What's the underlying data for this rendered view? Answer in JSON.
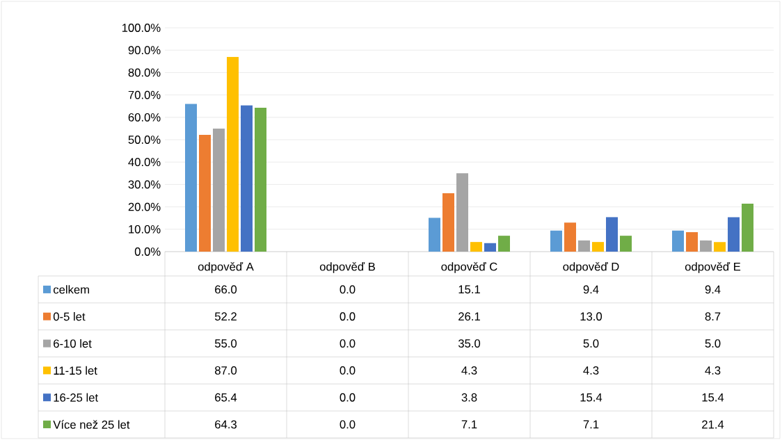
{
  "chart_data": {
    "type": "bar",
    "categories": [
      "odpověď A",
      "odpověď B",
      "odpověď C",
      "odpověď D",
      "odpověď E"
    ],
    "series": [
      {
        "name": "celkem",
        "color": "#5b9bd5",
        "values": [
          66.0,
          0.0,
          15.1,
          9.4,
          9.4
        ],
        "value_labels": [
          "66.0",
          "0.0",
          "15.1",
          "9.4",
          "9.4"
        ]
      },
      {
        "name": "0-5 let",
        "color": "#ed7d31",
        "values": [
          52.2,
          0.0,
          26.1,
          13.0,
          8.7
        ],
        "value_labels": [
          "52.2",
          "0.0",
          "26.1",
          "13.0",
          "8.7"
        ]
      },
      {
        "name": "6-10 let",
        "color": "#a5a5a5",
        "values": [
          55.0,
          0.0,
          35.0,
          5.0,
          5.0
        ],
        "value_labels": [
          "55.0",
          "0.0",
          "35.0",
          "5.0",
          "5.0"
        ]
      },
      {
        "name": "11-15 let",
        "color": "#ffc000",
        "values": [
          87.0,
          0.0,
          4.3,
          4.3,
          4.3
        ],
        "value_labels": [
          "87.0",
          "0.0",
          "4.3",
          "4.3",
          "4.3"
        ]
      },
      {
        "name": "16-25 let",
        "color": "#4472c4",
        "values": [
          65.4,
          0.0,
          3.8,
          15.4,
          15.4
        ],
        "value_labels": [
          "65.4",
          "0.0",
          "3.8",
          "15.4",
          "15.4"
        ]
      },
      {
        "name": "Více než 25 let",
        "color": "#70ad47",
        "values": [
          64.3,
          0.0,
          7.1,
          7.1,
          21.4
        ],
        "value_labels": [
          "64.3",
          "0.0",
          "7.1",
          "7.1",
          "21.4"
        ]
      }
    ],
    "ylim": [
      0,
      100
    ],
    "yticks": [
      {
        "value": 0,
        "label": "0.0%"
      },
      {
        "value": 10,
        "label": "10.0%"
      },
      {
        "value": 20,
        "label": "20.0%"
      },
      {
        "value": 30,
        "label": "30.0%"
      },
      {
        "value": 40,
        "label": "40.0%"
      },
      {
        "value": 50,
        "label": "50.0%"
      },
      {
        "value": 60,
        "label": "60.0%"
      },
      {
        "value": 70,
        "label": "70.0%"
      },
      {
        "value": 80,
        "label": "80.0%"
      },
      {
        "value": 90,
        "label": "90.0%"
      },
      {
        "value": 100,
        "label": "100.0%"
      }
    ],
    "grid": "y",
    "legend": "bottom"
  }
}
